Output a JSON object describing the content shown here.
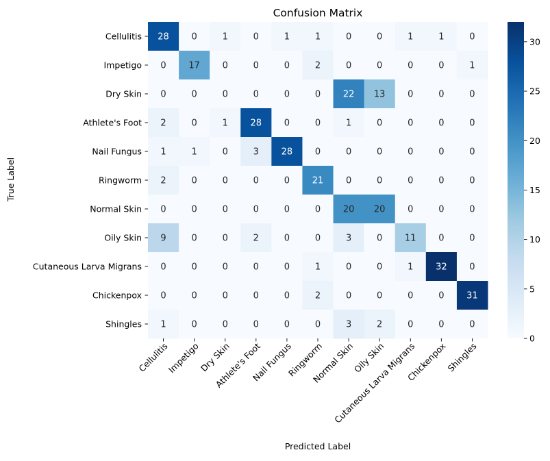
{
  "chart_data": {
    "type": "heatmap",
    "title": "Confusion Matrix",
    "xlabel": "Predicted Label",
    "ylabel": "True Label",
    "x_categories": [
      "Cellulitis",
      "Impetigo",
      "Dry Skin",
      "Athlete's Foot",
      "Nail Fungus",
      "Ringworm",
      "Normal Skin",
      "Oily Skin",
      "Cutaneous Larva Migrans",
      "Chickenpox",
      "Shingles"
    ],
    "y_categories": [
      "Cellulitis",
      "Impetigo",
      "Dry Skin",
      "Athlete's Foot",
      "Nail Fungus",
      "Ringworm",
      "Normal Skin",
      "Oily Skin",
      "Cutaneous Larva Migrans",
      "Chickenpox",
      "Shingles"
    ],
    "values": [
      [
        28,
        0,
        1,
        0,
        1,
        1,
        0,
        0,
        1,
        1,
        0
      ],
      [
        0,
        17,
        0,
        0,
        0,
        2,
        0,
        0,
        0,
        0,
        1
      ],
      [
        0,
        0,
        0,
        0,
        0,
        0,
        22,
        13,
        0,
        0,
        0
      ],
      [
        2,
        0,
        1,
        28,
        0,
        0,
        1,
        0,
        0,
        0,
        0
      ],
      [
        1,
        1,
        0,
        3,
        28,
        0,
        0,
        0,
        0,
        0,
        0
      ],
      [
        2,
        0,
        0,
        0,
        0,
        21,
        0,
        0,
        0,
        0,
        0
      ],
      [
        0,
        0,
        0,
        0,
        0,
        0,
        20,
        20,
        0,
        0,
        0
      ],
      [
        9,
        0,
        0,
        2,
        0,
        0,
        3,
        0,
        11,
        0,
        0
      ],
      [
        0,
        0,
        0,
        0,
        0,
        1,
        0,
        0,
        1,
        32,
        0
      ],
      [
        0,
        0,
        0,
        0,
        0,
        2,
        0,
        0,
        0,
        0,
        31
      ],
      [
        1,
        0,
        0,
        0,
        0,
        0,
        3,
        2,
        0,
        0,
        0
      ]
    ],
    "vmin": 0,
    "vmax": 32,
    "colormap": "Blues",
    "colorbar_ticks": [
      0,
      5,
      10,
      15,
      20,
      25,
      30
    ],
    "grid": false,
    "x_tick_rotation": 45
  }
}
